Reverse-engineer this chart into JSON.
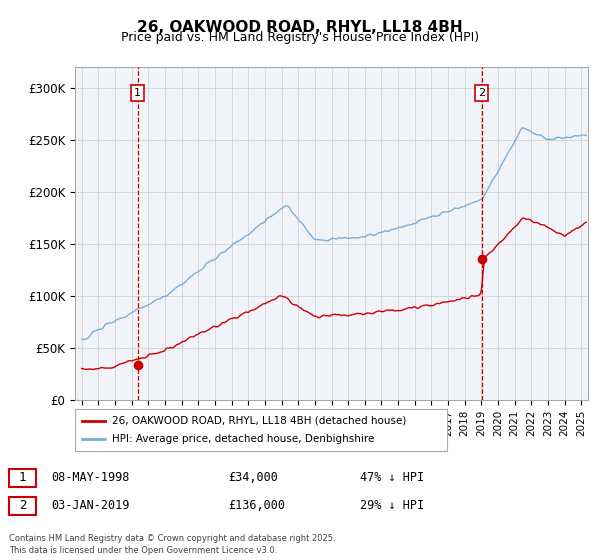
{
  "title": "26, OAKWOOD ROAD, RHYL, LL18 4BH",
  "subtitle": "Price paid vs. HM Land Registry's House Price Index (HPI)",
  "ylim": [
    0,
    320000
  ],
  "yticks": [
    0,
    50000,
    100000,
    150000,
    200000,
    250000,
    300000
  ],
  "ytick_labels": [
    "£0",
    "£50K",
    "£100K",
    "£150K",
    "£200K",
    "£250K",
    "£300K"
  ],
  "xlim_start": 1994.6,
  "xlim_end": 2025.4,
  "sale1_x": 1998.354,
  "sale1_y": 34000,
  "sale2_x": 2019.01,
  "sale2_y": 136000,
  "sale1_label": "1",
  "sale2_label": "2",
  "vline_color": "#cc0000",
  "hpi_line_color": "#7bafd4",
  "price_line_color": "#cc0000",
  "legend_label1": "26, OAKWOOD ROAD, RHYL, LL18 4BH (detached house)",
  "legend_label2": "HPI: Average price, detached house, Denbighshire",
  "annot1_date": "08-MAY-1998",
  "annot1_price": "£34,000",
  "annot1_hpi": "47% ↓ HPI",
  "annot2_date": "03-JAN-2019",
  "annot2_price": "£136,000",
  "annot2_hpi": "29% ↓ HPI",
  "footer": "Contains HM Land Registry data © Crown copyright and database right 2025.\nThis data is licensed under the Open Government Licence v3.0.",
  "bg_color": "#ffffff",
  "plot_bg_color": "#f0f4f8"
}
